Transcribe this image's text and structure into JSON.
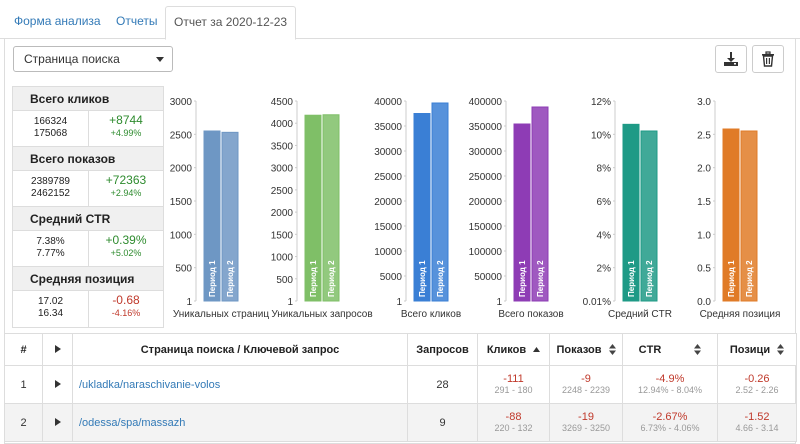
{
  "tabs": [
    {
      "label": "Форма анализа"
    },
    {
      "label": "Отчеты"
    },
    {
      "label": "Отчет за 2020-12-23"
    }
  ],
  "toolbar": {
    "select_value": "Страница поиска",
    "download_icon": "download-icon",
    "delete_icon": "trash-icon"
  },
  "stats": [
    {
      "title": "Всего кликов",
      "v1": "166324",
      "v2": "175068",
      "diff": "+8744",
      "pct": "+4.99%",
      "diff_color": "green",
      "pct_color": "green"
    },
    {
      "title": "Всего показов",
      "v1": "2389789",
      "v2": "2462152",
      "diff": "+72363",
      "pct": "+2.94%",
      "diff_color": "green",
      "pct_color": "green"
    },
    {
      "title": "Средний CTR",
      "v1": "7.38%",
      "v2": "7.77%",
      "diff": "+0.39%",
      "pct": "+5.02%",
      "diff_color": "green",
      "pct_color": "green"
    },
    {
      "title": "Средняя позиция",
      "v1": "17.02",
      "v2": "16.34",
      "diff": "-0.68",
      "pct": "-4.16%",
      "diff_color": "red",
      "pct_color": "red"
    }
  ],
  "chart_data": [
    {
      "type": "bar",
      "xlabel": "Уникальных страниц",
      "yticks": [
        "3000",
        "2500",
        "2000",
        "1500",
        "1000",
        "500",
        "1"
      ],
      "ylim": [
        0,
        3000
      ],
      "categories": [
        "Период 1",
        "Период 2"
      ],
      "values": [
        2550,
        2530
      ],
      "color": "#6e97c4"
    },
    {
      "type": "bar",
      "xlabel": "Уникальных запросов",
      "yticks": [
        "4500",
        "4000",
        "3500",
        "3000",
        "2500",
        "2000",
        "1500",
        "1000",
        "500",
        "1"
      ],
      "ylim": [
        0,
        4500
      ],
      "categories": [
        "Период 1",
        "Период 2"
      ],
      "values": [
        4180,
        4190
      ],
      "color": "#7fbf67"
    },
    {
      "type": "bar",
      "xlabel": "Всего кликов",
      "yticks": [
        "40000",
        "35000",
        "30000",
        "25000",
        "20000",
        "15000",
        "10000",
        "5000",
        "1"
      ],
      "ylim": [
        0,
        40000
      ],
      "categories": [
        "Период 1",
        "Период 2"
      ],
      "values": [
        37500,
        39600
      ],
      "color": "#3a7fd5"
    },
    {
      "type": "bar",
      "xlabel": "Всего показов",
      "yticks": [
        "400000",
        "350000",
        "300000",
        "250000",
        "200000",
        "150000",
        "100000",
        "50000",
        "1"
      ],
      "ylim": [
        0,
        400000
      ],
      "categories": [
        "Период 1",
        "Период 2"
      ],
      "values": [
        354000,
        388000
      ],
      "color": "#8e3cb5"
    },
    {
      "type": "bar",
      "xlabel": "Средний CTR",
      "yticks": [
        "12%",
        "10%",
        "8%",
        "6%",
        "4%",
        "2%",
        "0.01%"
      ],
      "ylim": [
        0,
        12
      ],
      "categories": [
        "Период 1",
        "Период 2"
      ],
      "values": [
        10.6,
        10.2
      ],
      "color": "#1e9a86"
    },
    {
      "type": "bar",
      "xlabel": "Средняя позиция",
      "yticks": [
        "3.0",
        "2.5",
        "2.0",
        "1.5",
        "1.0",
        "0.5",
        "0.0"
      ],
      "ylim": [
        0,
        3
      ],
      "categories": [
        "Период 1",
        "Период 2"
      ],
      "values": [
        2.58,
        2.55
      ],
      "color": "#e07b27"
    }
  ],
  "table": {
    "headers": {
      "num": "#",
      "expand": "",
      "page": "Страница поиска / Ключевой запрос",
      "queries": "Запросов",
      "clicks": "Кликов",
      "shows": "Показов",
      "ctr": "CTR",
      "pos": "Позици"
    },
    "rows": [
      {
        "num": "1",
        "page": "/ukladka/naraschivanie-volos",
        "queries": "28",
        "clicks": "-111",
        "clicks_range": "291 - 180",
        "shows": "-9",
        "shows_range": "2248 - 2239",
        "ctr": "-4.9%",
        "ctr_range": "12.94% - 8.04%",
        "pos": "-0.26",
        "pos_range": "2.52 - 2.26"
      },
      {
        "num": "2",
        "page": "/odessa/spa/massazh",
        "queries": "9",
        "clicks": "-88",
        "clicks_range": "220 - 132",
        "shows": "-19",
        "shows_range": "3269 - 3250",
        "ctr": "-2.67%",
        "ctr_range": "6.73% - 4.06%",
        "pos": "-1.52",
        "pos_range": "4.66 - 3.14"
      }
    ]
  }
}
